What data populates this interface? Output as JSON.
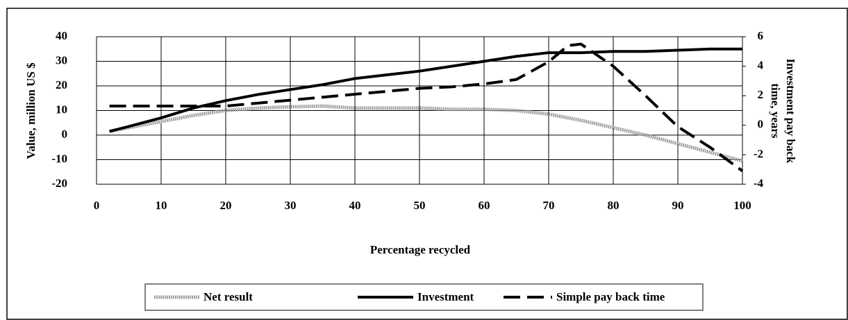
{
  "chart_data": {
    "type": "line",
    "xlabel": "Percentage recycled",
    "ylabel": "Value, million US $",
    "y2label": [
      "Investment pay back",
      "time, years"
    ],
    "x": [
      2,
      5,
      10,
      15,
      20,
      25,
      30,
      35,
      40,
      45,
      50,
      55,
      60,
      65,
      70,
      73,
      75,
      80,
      85,
      90,
      95,
      100
    ],
    "series": [
      {
        "name": "Net result",
        "color": "#a0a0a0",
        "style": "hatched",
        "values": [
          1.5,
          3,
          5.5,
          8,
          10,
          11,
          11.5,
          11.8,
          11,
          11,
          11,
          10.5,
          10.5,
          10,
          8.5,
          7,
          6,
          3,
          0,
          -3.5,
          -7,
          -10.5
        ]
      },
      {
        "name": "Investment",
        "color": "#000000",
        "style": "solid",
        "values": [
          1.5,
          3.5,
          7,
          11,
          14,
          16.5,
          18.5,
          20.5,
          23,
          24.5,
          26,
          28,
          30,
          32,
          33.5,
          33.5,
          33.5,
          34,
          34,
          34.5,
          35,
          35
        ]
      },
      {
        "name": "Simple pay back time",
        "color": "#000000",
        "style": "dashed",
        "axis": "y2",
        "values": [
          1.3,
          1.3,
          1.3,
          1.3,
          1.3,
          1.5,
          1.7,
          1.9,
          2.1,
          2.3,
          2.5,
          2.6,
          2.8,
          3.1,
          4.3,
          5.4,
          5.5,
          4.0,
          2.0,
          -0.1,
          -1.5,
          -3.1
        ]
      }
    ],
    "xlim": [
      0,
      100
    ],
    "xticks": [
      0,
      10,
      20,
      30,
      40,
      50,
      60,
      70,
      80,
      90,
      100
    ],
    "ylim": [
      -20,
      40
    ],
    "yticks": [
      -20,
      -10,
      0,
      10,
      20,
      30,
      40
    ],
    "y2lim": [
      -4,
      6
    ],
    "y2ticks": [
      -4,
      -2,
      0,
      2,
      4,
      6
    ],
    "grid": true,
    "legend": "bottom"
  }
}
